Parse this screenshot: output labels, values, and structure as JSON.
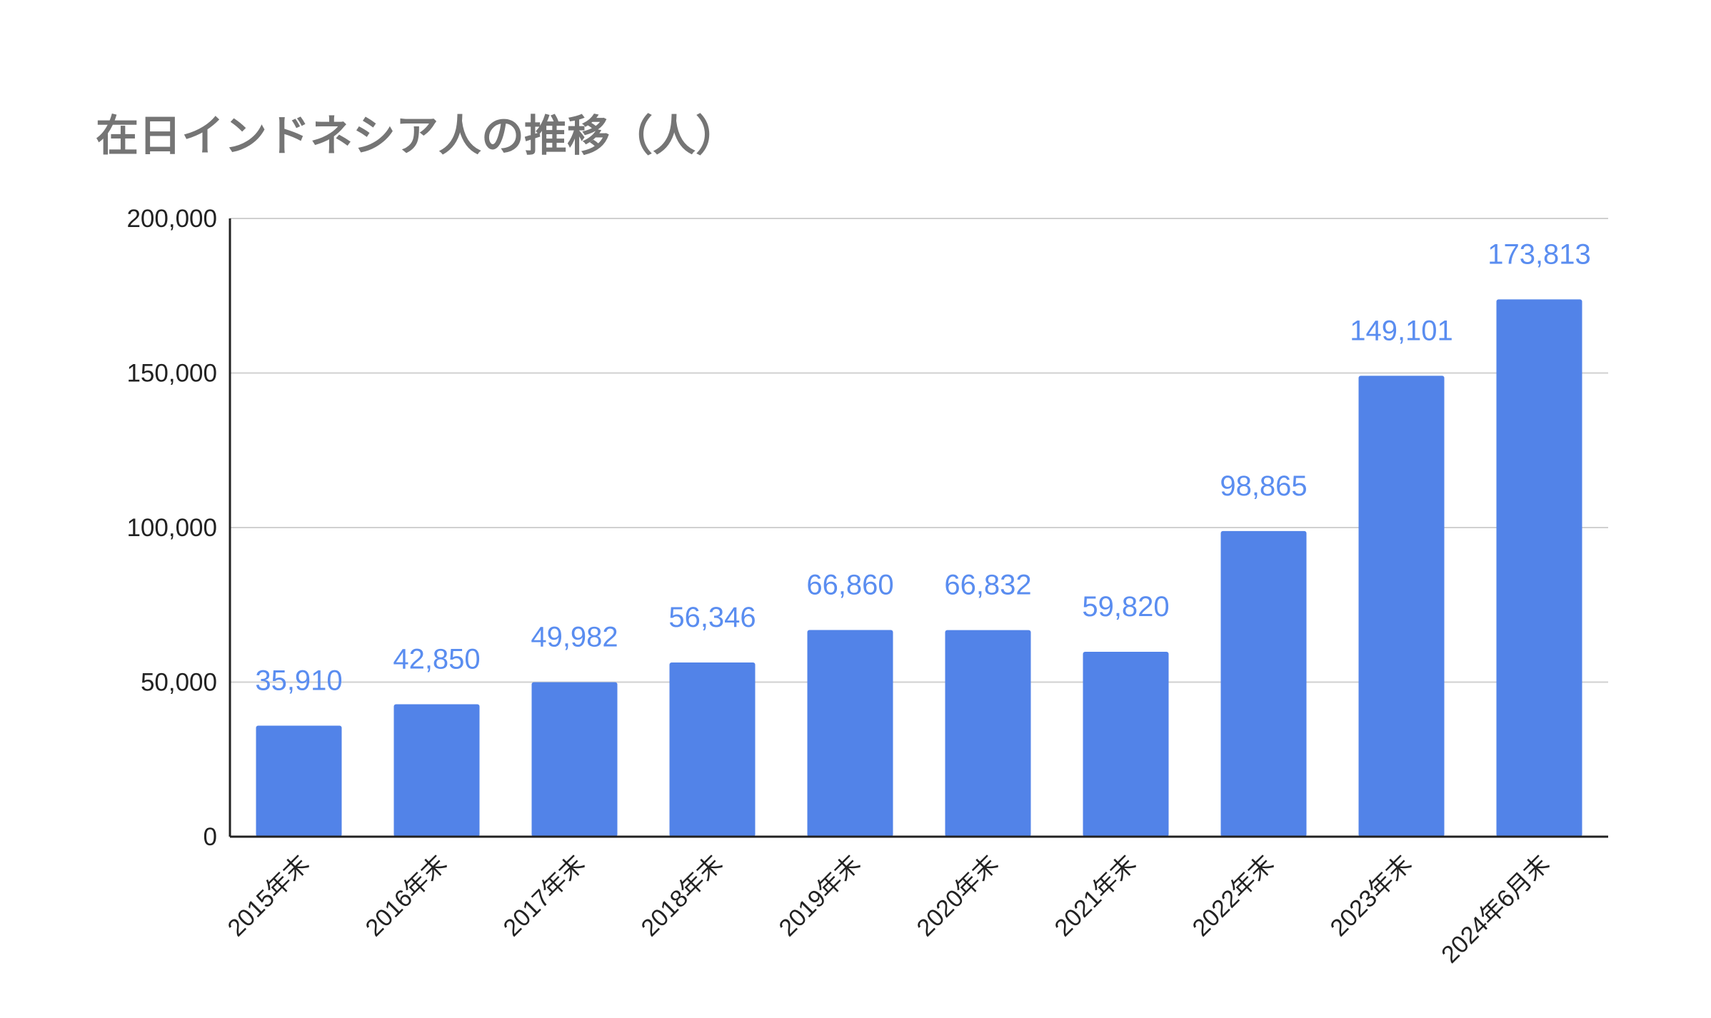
{
  "chart_data": {
    "type": "bar",
    "title": "在日インドネシア人の推移（人）",
    "xlabel": "",
    "ylabel": "",
    "categories": [
      "2015年末",
      "2016年末",
      "2017年末",
      "2018年末",
      "2019年末",
      "2020年末",
      "2021年末",
      "2022年末",
      "2023年末",
      "2024年6月末"
    ],
    "values": [
      35910,
      42850,
      49982,
      56346,
      66860,
      66832,
      59820,
      98865,
      149101,
      173813
    ],
    "data_labels": [
      "35,910",
      "42,850",
      "49,982",
      "56,346",
      "66,860",
      "66,832",
      "59,820",
      "98,865",
      "149,101",
      "173,813"
    ],
    "ylim": [
      0,
      200000
    ],
    "yticks": [
      0,
      50000,
      100000,
      150000,
      200000
    ],
    "ytick_labels": [
      "0",
      "50,000",
      "100,000",
      "150,000",
      "200,000"
    ],
    "grid": true,
    "legend": "none",
    "colors": {
      "bar": "#5283e8",
      "data_label": "#5a8df0",
      "title": "#757575",
      "grid": "#d0d0d0",
      "axis": "#222222",
      "tick_label": "#222222"
    }
  }
}
